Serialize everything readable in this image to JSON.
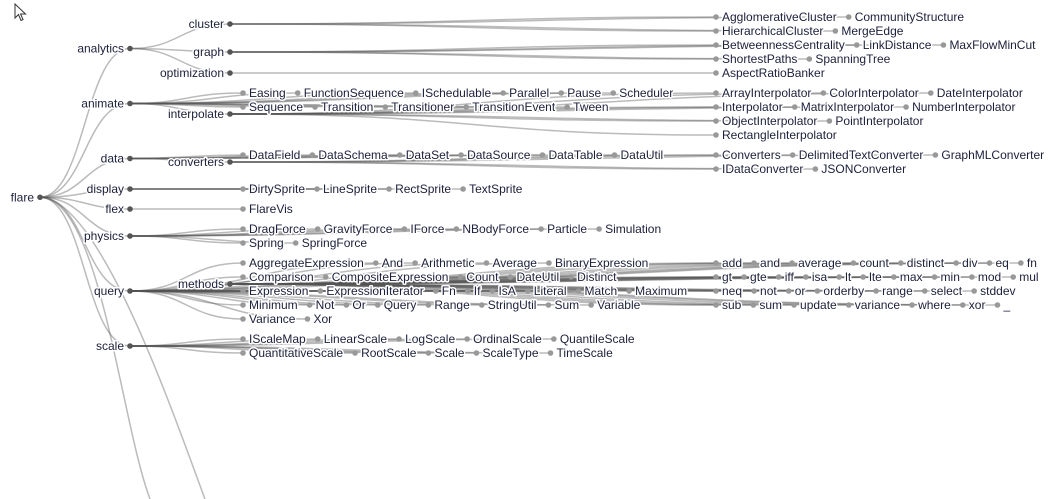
{
  "tree": {
    "name": "flare",
    "children": [
      {
        "name": "analytics",
        "children": [
          {
            "name": "cluster",
            "children": [
              {
                "name": "AgglomerativeCluster"
              },
              {
                "name": "CommunityStructure"
              },
              {
                "name": "HierarchicalCluster"
              },
              {
                "name": "MergeEdge"
              }
            ]
          },
          {
            "name": "graph",
            "children": [
              {
                "name": "BetweennessCentrality"
              },
              {
                "name": "LinkDistance"
              },
              {
                "name": "MaxFlowMinCut"
              },
              {
                "name": "ShortestPaths"
              },
              {
                "name": "SpanningTree"
              }
            ]
          },
          {
            "name": "optimization",
            "children": [
              {
                "name": "AspectRatioBanker"
              }
            ]
          }
        ]
      },
      {
        "name": "animate",
        "children": [
          {
            "name": "Easing"
          },
          {
            "name": "FunctionSequence"
          },
          {
            "name": "interpolate",
            "children": [
              {
                "name": "ArrayInterpolator"
              },
              {
                "name": "ColorInterpolator"
              },
              {
                "name": "DateInterpolator"
              },
              {
                "name": "Interpolator"
              },
              {
                "name": "MatrixInterpolator"
              },
              {
                "name": "NumberInterpolator"
              },
              {
                "name": "ObjectInterpolator"
              },
              {
                "name": "PointInterpolator"
              },
              {
                "name": "RectangleInterpolator"
              }
            ]
          },
          {
            "name": "ISchedulable"
          },
          {
            "name": "Parallel"
          },
          {
            "name": "Pause"
          },
          {
            "name": "Scheduler"
          },
          {
            "name": "Sequence"
          },
          {
            "name": "Transition"
          },
          {
            "name": "Transitioner"
          },
          {
            "name": "TransitionEvent"
          },
          {
            "name": "Tween"
          }
        ]
      },
      {
        "name": "data",
        "children": [
          {
            "name": "converters",
            "children": [
              {
                "name": "Converters"
              },
              {
                "name": "DelimitedTextConverter"
              },
              {
                "name": "GraphMLConverter"
              },
              {
                "name": "IDataConverter"
              },
              {
                "name": "JSONConverter"
              }
            ]
          },
          {
            "name": "DataField"
          },
          {
            "name": "DataSchema"
          },
          {
            "name": "DataSet"
          },
          {
            "name": "DataSource"
          },
          {
            "name": "DataTable"
          },
          {
            "name": "DataUtil"
          }
        ]
      },
      {
        "name": "display",
        "children": [
          {
            "name": "DirtySprite"
          },
          {
            "name": "LineSprite"
          },
          {
            "name": "RectSprite"
          },
          {
            "name": "TextSprite"
          }
        ]
      },
      {
        "name": "flex",
        "children": [
          {
            "name": "FlareVis"
          }
        ]
      },
      {
        "name": "physics",
        "children": [
          {
            "name": "DragForce"
          },
          {
            "name": "GravityForce"
          },
          {
            "name": "IForce"
          },
          {
            "name": "NBodyForce"
          },
          {
            "name": "Particle"
          },
          {
            "name": "Simulation"
          },
          {
            "name": "Spring"
          },
          {
            "name": "SpringForce"
          }
        ]
      },
      {
        "name": "query",
        "children": [
          {
            "name": "AggregateExpression"
          },
          {
            "name": "And"
          },
          {
            "name": "Arithmetic"
          },
          {
            "name": "Average"
          },
          {
            "name": "BinaryExpression"
          },
          {
            "name": "Comparison"
          },
          {
            "name": "CompositeExpression"
          },
          {
            "name": "Count"
          },
          {
            "name": "DateUtil"
          },
          {
            "name": "Distinct"
          },
          {
            "name": "Expression"
          },
          {
            "name": "ExpressionIterator"
          },
          {
            "name": "Fn"
          },
          {
            "name": "If"
          },
          {
            "name": "IsA"
          },
          {
            "name": "Literal"
          },
          {
            "name": "Match"
          },
          {
            "name": "Maximum"
          },
          {
            "name": "methods",
            "children": [
              {
                "name": "add"
              },
              {
                "name": "and"
              },
              {
                "name": "average"
              },
              {
                "name": "count"
              },
              {
                "name": "distinct"
              },
              {
                "name": "div"
              },
              {
                "name": "eq"
              },
              {
                "name": "fn"
              },
              {
                "name": "gt"
              },
              {
                "name": "gte"
              },
              {
                "name": "iff"
              },
              {
                "name": "isa"
              },
              {
                "name": "lt"
              },
              {
                "name": "lte"
              },
              {
                "name": "max"
              },
              {
                "name": "min"
              },
              {
                "name": "mod"
              },
              {
                "name": "mul"
              },
              {
                "name": "neq"
              },
              {
                "name": "not"
              },
              {
                "name": "or"
              },
              {
                "name": "orderby"
              },
              {
                "name": "range"
              },
              {
                "name": "select"
              },
              {
                "name": "stddev"
              },
              {
                "name": "sub"
              },
              {
                "name": "sum"
              },
              {
                "name": "update"
              },
              {
                "name": "variance"
              },
              {
                "name": "where"
              },
              {
                "name": "xor"
              },
              {
                "name": "_"
              }
            ]
          },
          {
            "name": "Minimum"
          },
          {
            "name": "Not"
          },
          {
            "name": "Or"
          },
          {
            "name": "Query"
          },
          {
            "name": "Range"
          },
          {
            "name": "StringUtil"
          },
          {
            "name": "Sum"
          },
          {
            "name": "Variable"
          },
          {
            "name": "Variance"
          },
          {
            "name": "Xor"
          }
        ]
      },
      {
        "name": "scale",
        "children": [
          {
            "name": "IScaleMap"
          },
          {
            "name": "LinearScale"
          },
          {
            "name": "LogScale"
          },
          {
            "name": "OrdinalScale"
          },
          {
            "name": "QuantileScale"
          },
          {
            "name": "QuantitativeScale"
          },
          {
            "name": "RootScale"
          },
          {
            "name": "Scale"
          },
          {
            "name": "ScaleType"
          },
          {
            "name": "TimeScale"
          }
        ]
      }
    ]
  },
  "colors": {
    "internal_node": "#555555",
    "leaf_node": "#999999",
    "link": "#555555"
  },
  "icons": {
    "cursor": "mouse-pointer-icon"
  }
}
